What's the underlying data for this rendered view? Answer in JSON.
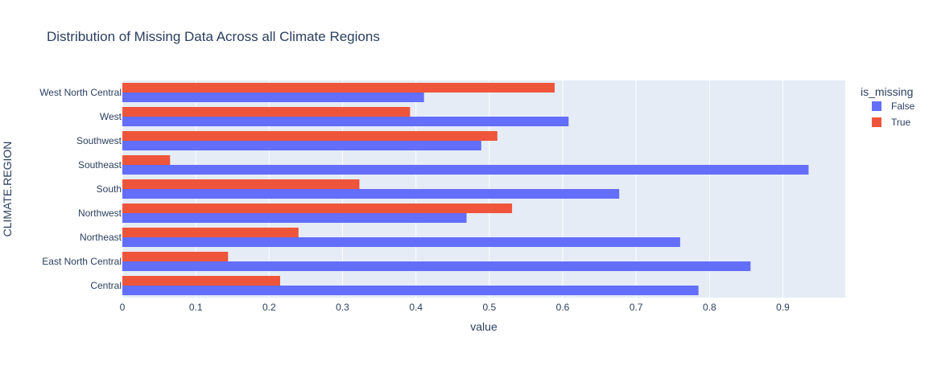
{
  "chart_data": {
    "type": "bar",
    "orientation": "horizontal",
    "barmode": "group",
    "title": "Distribution of Missing Data Across all Climate Regions",
    "xlabel": "value",
    "ylabel": "CLIMATE.REGION",
    "xlim": [
      0,
      0.985
    ],
    "xticks": [
      0,
      0.1,
      0.2,
      0.3,
      0.4,
      0.5,
      0.6,
      0.7,
      0.8,
      0.9
    ],
    "xtick_labels": [
      "0",
      "0.1",
      "0.2",
      "0.3",
      "0.4",
      "0.5",
      "0.6",
      "0.7",
      "0.8",
      "0.9"
    ],
    "grid": true,
    "legend_title": "is_missing",
    "legend_position": "top-right",
    "categories": [
      "Central",
      "East North Central",
      "Northeast",
      "Northwest",
      "South",
      "Southeast",
      "Southwest",
      "West",
      "West North Central"
    ],
    "series": [
      {
        "name": "False",
        "color": "#636efa",
        "values": [
          0.785,
          0.856,
          0.76,
          0.469,
          0.677,
          0.935,
          0.489,
          0.608,
          0.411
        ]
      },
      {
        "name": "True",
        "color": "#ef553b",
        "values": [
          0.215,
          0.144,
          0.24,
          0.531,
          0.323,
          0.065,
          0.511,
          0.392,
          0.589
        ]
      }
    ],
    "plot_background": "#e5ecf6",
    "grid_color": "#ffffff",
    "text_color": "#2a3f5f"
  }
}
